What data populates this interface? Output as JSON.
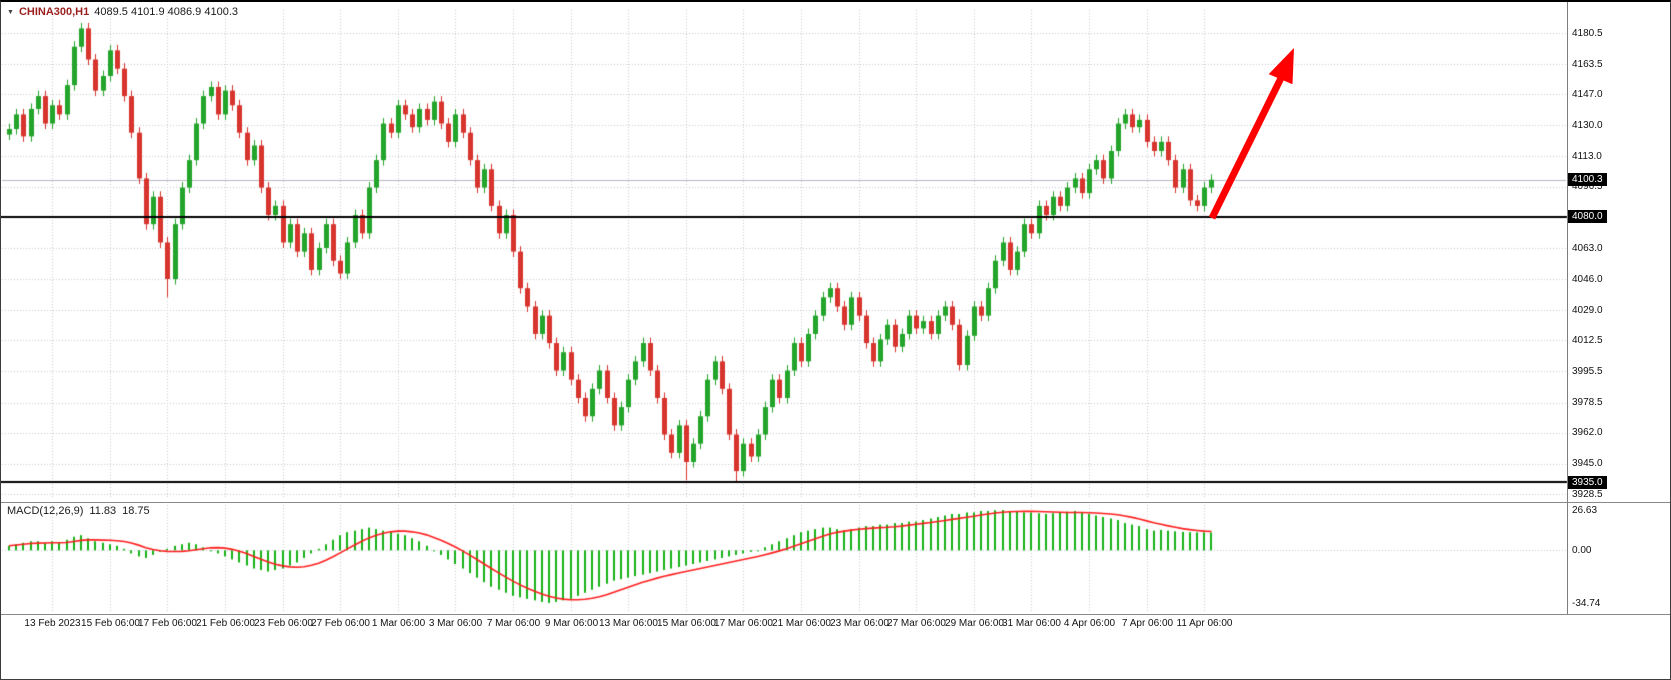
{
  "window_title": "CHINA300,H1 chart",
  "symbol_bar": {
    "dropdown_icon": "dropdown-triangle",
    "symbol": "CHINA300,H1",
    "ohlc": "4089.5 4101.9 4086.9 4100.3"
  },
  "macd_panel": {
    "name": "MACD(12,26,9)",
    "value": "11.83",
    "signal_value": "18.75",
    "axis_labels": [
      "26.63",
      "0.00",
      "-34.74"
    ]
  },
  "price_axis": {
    "badges": [
      {
        "text": "4100.3",
        "price": 4100.3,
        "kind": "current-price"
      },
      {
        "text": "4080.0",
        "price": 4080.0,
        "kind": "horizontal-line"
      },
      {
        "text": "3935.0",
        "price": 3935.0,
        "kind": "horizontal-line"
      }
    ]
  },
  "colors": {
    "bull": "#23a42a",
    "bear": "#d7342e",
    "macd_histogram": "#16b216",
    "macd_signal": "#ff1e1e",
    "hline": "#000000",
    "grid": "#c9c9d4",
    "arrow": "#ff0000",
    "badge_bg": "#000000",
    "badge_text": "#ffffff",
    "current_price_line": "#b9b9c4",
    "axis_text": "#111111"
  },
  "chart_data": {
    "type": "candlestick",
    "title": "CHINA300,H1",
    "legend_position": "none",
    "grid": "dotted",
    "y_axis": {
      "range": [
        3928.5,
        4180.5
      ],
      "tick_labels": [
        "4180.5",
        "4163.5",
        "4147.0",
        "4130.0",
        "4113.0",
        "4096.5",
        "4080.0",
        "4063.0",
        "4046.0",
        "4029.0",
        "4012.5",
        "3995.5",
        "3978.5",
        "3962.0",
        "3945.0",
        "3928.5"
      ]
    },
    "x_axis": {
      "tick_labels": [
        "13 Feb 2023",
        "15 Feb 06:00",
        "17 Feb 06:00",
        "21 Feb 06:00",
        "23 Feb 06:00",
        "27 Feb 06:00",
        "1 Mar 06:00",
        "3 Mar 06:00",
        "7 Mar 06:00",
        "9 Mar 06:00",
        "13 Mar 06:00",
        "15 Mar 06:00",
        "17 Mar 06:00",
        "21 Mar 06:00",
        "23 Mar 06:00",
        "27 Mar 06:00",
        "29 Mar 06:00",
        "31 Mar 06:00",
        "4 Apr 06:00",
        "7 Apr 06:00",
        "11 Apr 06:00"
      ]
    },
    "current_price": 4100.3,
    "horizontal_lines": [
      4080.0,
      3935.0
    ],
    "first_open": 4125,
    "wick_margin": 3,
    "closes": [
      4128,
      4136,
      4124,
      4139,
      4146,
      4131,
      4141,
      4136,
      4152,
      4173,
      4183,
      4166,
      4149,
      4157,
      4171,
      4161,
      4146,
      4126,
      4101,
      4076,
      4091,
      4066,
      4046,
      4076,
      4096,
      4111,
      4131,
      4146,
      4151,
      4136,
      4149,
      4141,
      4126,
      4111,
      4119,
      4096,
      4081,
      4086,
      4066,
      4076,
      4061,
      4071,
      4051,
      4063,
      4076,
      4056,
      4049,
      4066,
      4081,
      4071,
      4096,
      4111,
      4131,
      4126,
      4141,
      4136,
      4129,
      4139,
      4133,
      4143,
      4131,
      4121,
      4136,
      4126,
      4111,
      4096,
      4106,
      4086,
      4071,
      4081,
      4061,
      4041,
      4031,
      4016,
      4026,
      4011,
      3996,
      4006,
      3991,
      3981,
      3971,
      3986,
      3996,
      3981,
      3966,
      3976,
      3991,
      4001,
      4011,
      3996,
      3981,
      3961,
      3951,
      3966,
      3946,
      3956,
      3971,
      3991,
      4001,
      3986,
      3961,
      3941,
      3956,
      3949,
      3961,
      3976,
      3991,
      3981,
      3996,
      4011,
      4001,
      4016,
      4026,
      4036,
      4041,
      4031,
      4021,
      4036,
      4026,
      4011,
      4001,
      4013,
      4021,
      4009,
      4016,
      4026,
      4019,
      4023,
      4016,
      4026,
      4031,
      4021,
      3999,
      4015,
      4031,
      4026,
      4041,
      4056,
      4066,
      4051,
      4061,
      4076,
      4071,
      4086,
      4081,
      4091,
      4086,
      4096,
      4101,
      4093,
      4106,
      4111,
      4101,
      4116,
      4131,
      4136,
      4129,
      4133,
      4121,
      4116,
      4121,
      4111,
      4096,
      4106,
      4089,
      4086,
      4096,
      4100.3
    ],
    "spikes": {
      "10": {
        "high": 4186
      },
      "22": {
        "low": 4036
      },
      "94": {
        "low": 3936
      },
      "101": {
        "low": 3935
      }
    },
    "macd": {
      "type": "bar+line",
      "label": "MACD(12,26,9)",
      "histogram_last": 11.83,
      "signal_last": 18.75,
      "range": [
        -34.74,
        26.63
      ],
      "signal_period": 9,
      "values": [
        3,
        4,
        5,
        6,
        6,
        5,
        6,
        5,
        7,
        9,
        10,
        8,
        6,
        5,
        4,
        3,
        1,
        -2,
        -4,
        -5,
        -3,
        -1,
        1,
        3,
        4,
        5,
        4,
        2,
        0,
        -2,
        -4,
        -6,
        -8,
        -10,
        -12,
        -13,
        -14,
        -13,
        -12,
        -10,
        -8,
        -5,
        -2,
        1,
        4,
        7,
        10,
        12,
        13,
        14,
        15,
        14,
        13,
        12,
        11,
        10,
        8,
        6,
        3,
        0,
        -3,
        -6,
        -9,
        -12,
        -15,
        -18,
        -21,
        -24,
        -26,
        -28,
        -30,
        -31,
        -32,
        -33,
        -34,
        -34.7,
        -34,
        -33,
        -32,
        -30,
        -28,
        -26,
        -24,
        -22,
        -20,
        -19,
        -18,
        -17,
        -16,
        -15,
        -14,
        -13,
        -12,
        -11,
        -10,
        -9,
        -8,
        -7,
        -6,
        -5,
        -4,
        -3,
        -2,
        -1,
        0,
        2,
        4,
        6,
        8,
        10,
        12,
        13,
        14,
        15,
        15,
        14,
        13,
        14,
        15,
        16,
        16,
        17,
        17,
        18,
        18,
        19,
        19,
        20,
        21,
        22,
        23,
        24,
        24,
        25,
        25,
        26,
        26,
        26.5,
        26.6,
        26,
        25.5,
        25,
        25,
        24.5,
        24,
        24.5,
        25,
        25.5,
        26,
        25,
        24,
        23,
        22,
        21,
        20,
        18,
        17,
        16,
        14,
        13,
        13.5,
        13,
        12.5,
        12.2,
        12,
        11.9,
        11.85,
        11.83
      ]
    },
    "annotation_arrow": {
      "type": "arrow",
      "direction": "up-right",
      "color": "#ff0000"
    }
  }
}
